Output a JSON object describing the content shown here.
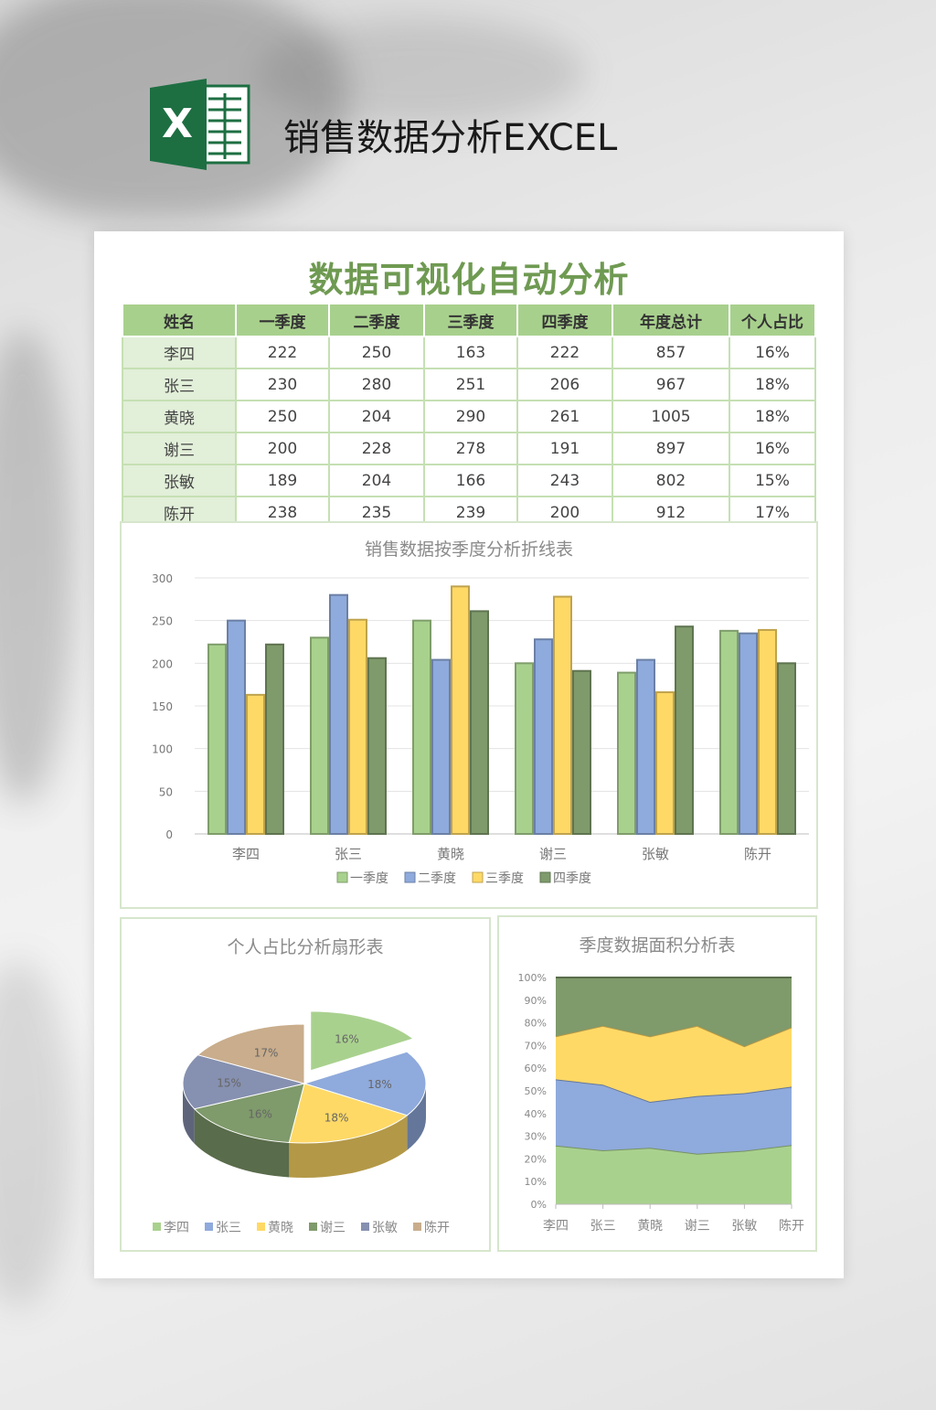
{
  "page": {
    "app_title": "销售数据分析EXCEL",
    "logo_letter": "X",
    "sheet_title": "数据可视化自动分析"
  },
  "table": {
    "headers": [
      "姓名",
      "一季度",
      "二季度",
      "三季度",
      "四季度",
      "年度总计",
      "个人占比"
    ],
    "rows": [
      [
        "李四",
        "222",
        "250",
        "163",
        "222",
        "857",
        "16%"
      ],
      [
        "张三",
        "230",
        "280",
        "251",
        "206",
        "967",
        "18%"
      ],
      [
        "黄晓",
        "250",
        "204",
        "290",
        "261",
        "1005",
        "18%"
      ],
      [
        "谢三",
        "200",
        "228",
        "278",
        "191",
        "897",
        "16%"
      ],
      [
        "张敏",
        "189",
        "204",
        "166",
        "243",
        "802",
        "15%"
      ],
      [
        "陈开",
        "238",
        "235",
        "239",
        "200",
        "912",
        "17%"
      ]
    ]
  },
  "colors": {
    "q1": "#a9d18e",
    "q2": "#8faadc",
    "q3": "#ffd966",
    "q4": "#7f9a6b",
    "pie_extra1": "#8690b0",
    "pie_extra2": "#c9ad8c",
    "brand": "#6f9a52"
  },
  "chart_data": [
    {
      "type": "bar",
      "title": "销售数据按季度分析折线表",
      "categories": [
        "李四",
        "张三",
        "黄晓",
        "谢三",
        "张敏",
        "陈开"
      ],
      "series": [
        {
          "name": "一季度",
          "values": [
            222,
            230,
            250,
            200,
            189,
            238
          ]
        },
        {
          "name": "二季度",
          "values": [
            250,
            280,
            204,
            228,
            204,
            235
          ]
        },
        {
          "name": "三季度",
          "values": [
            163,
            251,
            290,
            278,
            166,
            239
          ]
        },
        {
          "name": "四季度",
          "values": [
            222,
            206,
            261,
            191,
            243,
            200
          ]
        }
      ],
      "ylim": [
        0,
        300
      ],
      "yticks": [
        "0",
        "50",
        "100",
        "150",
        "200",
        "250",
        "300"
      ],
      "grid": true,
      "legend": "bottom"
    },
    {
      "type": "pie",
      "title": "个人占比分析扇形表",
      "categories": [
        "李四",
        "张三",
        "黄晓",
        "谢三",
        "张敏",
        "陈开"
      ],
      "values": [
        16,
        18,
        18,
        16,
        15,
        17
      ],
      "labels": [
        "16%",
        "18%",
        "18%",
        "16%",
        "15%",
        "17%"
      ],
      "legend": "bottom"
    },
    {
      "type": "area",
      "title": "季度数据面积分析表",
      "categories": [
        "李四",
        "张三",
        "黄晓",
        "谢三",
        "张敏",
        "陈开"
      ],
      "series": [
        {
          "name": "一季度",
          "values": [
            222,
            230,
            250,
            200,
            189,
            238
          ]
        },
        {
          "name": "二季度",
          "values": [
            250,
            280,
            204,
            228,
            204,
            235
          ]
        },
        {
          "name": "三季度",
          "values": [
            163,
            251,
            290,
            278,
            166,
            239
          ]
        },
        {
          "name": "四季度",
          "values": [
            222,
            206,
            261,
            191,
            243,
            200
          ]
        }
      ],
      "stacked": "percent",
      "ylim": [
        0,
        100
      ],
      "yticks": [
        "0%",
        "10%",
        "20%",
        "30%",
        "40%",
        "50%",
        "60%",
        "70%",
        "80%",
        "90%",
        "100%"
      ]
    }
  ]
}
